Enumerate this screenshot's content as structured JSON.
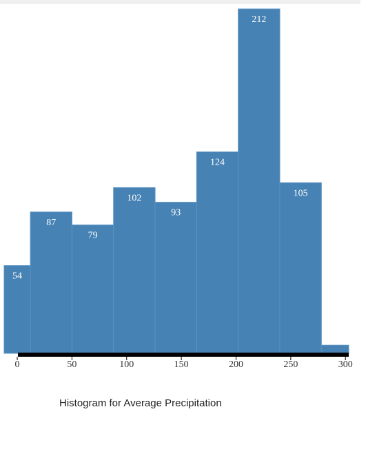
{
  "chart_data": {
    "type": "bar",
    "title": "Histogram for Average Precipitation",
    "xlabel": "",
    "ylabel": "",
    "bins": [
      {
        "x0": -12,
        "x1": 12,
        "count": 54
      },
      {
        "x0": 12,
        "x1": 50,
        "count": 87
      },
      {
        "x0": 50,
        "x1": 88,
        "count": 79
      },
      {
        "x0": 88,
        "x1": 126,
        "count": 102
      },
      {
        "x0": 126,
        "x1": 164,
        "count": 93
      },
      {
        "x0": 164,
        "x1": 202,
        "count": 124
      },
      {
        "x0": 202,
        "x1": 240,
        "count": 212
      },
      {
        "x0": 240,
        "x1": 278,
        "count": 105
      },
      {
        "x0": 278,
        "x1": 303,
        "count": 5
      }
    ],
    "values": [
      54,
      87,
      79,
      102,
      93,
      124,
      212,
      105,
      5
    ],
    "show_labels": [
      true,
      true,
      true,
      true,
      true,
      true,
      true,
      true,
      false
    ],
    "xticks": [
      0,
      50,
      100,
      150,
      200,
      250,
      300
    ],
    "xlim": [
      -12,
      303
    ],
    "ylim": [
      0,
      212
    ],
    "grid": false,
    "legend": "none",
    "colors": {
      "bar": "#4682b4",
      "bar_border": "#5b93c2",
      "axis": "#000000",
      "label": "#ffffff",
      "tick": "#333333"
    }
  }
}
